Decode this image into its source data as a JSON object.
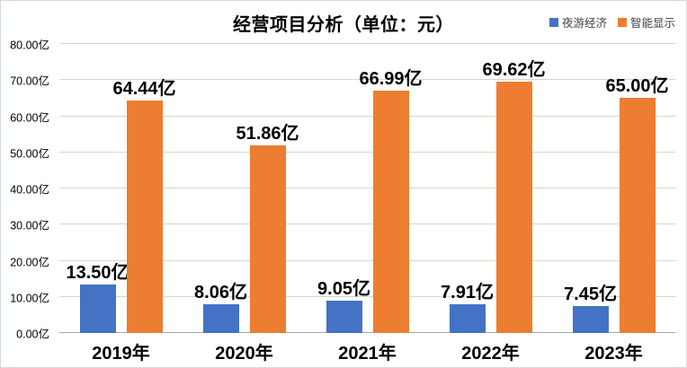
{
  "chart": {
    "title": "经营项目分析（单位：元）"
  },
  "legend": {
    "items": [
      {
        "label": "夜游经济",
        "color": "#4472C4"
      },
      {
        "label": "智能显示",
        "color": "#ED7D31"
      }
    ]
  },
  "chart_data": {
    "type": "bar",
    "title": "经营项目分析（单位：元）",
    "categories": [
      "2019年",
      "2020年",
      "2021年",
      "2022年",
      "2023年"
    ],
    "series": [
      {
        "name": "夜游经济",
        "color": "#4472C4",
        "values": [
          13.5,
          8.06,
          9.05,
          7.91,
          7.45
        ]
      },
      {
        "name": "智能显示",
        "color": "#ED7D31",
        "values": [
          64.44,
          51.86,
          66.99,
          69.62,
          65.0
        ]
      }
    ],
    "data_labels": [
      [
        "13.50亿",
        "8.06亿",
        "9.05亿",
        "7.91亿",
        "7.45亿"
      ],
      [
        "64.44亿",
        "51.86亿",
        "66.99亿",
        "69.62亿",
        "65.00亿"
      ]
    ],
    "y_axis": {
      "min": 0,
      "max": 80,
      "step": 10,
      "tick_labels": [
        "0.00亿",
        "10.00亿",
        "20.00亿",
        "30.00亿",
        "40.00亿",
        "50.00亿",
        "60.00亿",
        "70.00亿",
        "80.00亿"
      ]
    },
    "xlabel": "",
    "ylabel": "",
    "grid": true,
    "legend_position": "top-right",
    "colors": {
      "gridline": "#C5E0C3",
      "axis_line": "#A6A6A6",
      "label_text": "#000000",
      "legend_text": "#404040"
    }
  }
}
